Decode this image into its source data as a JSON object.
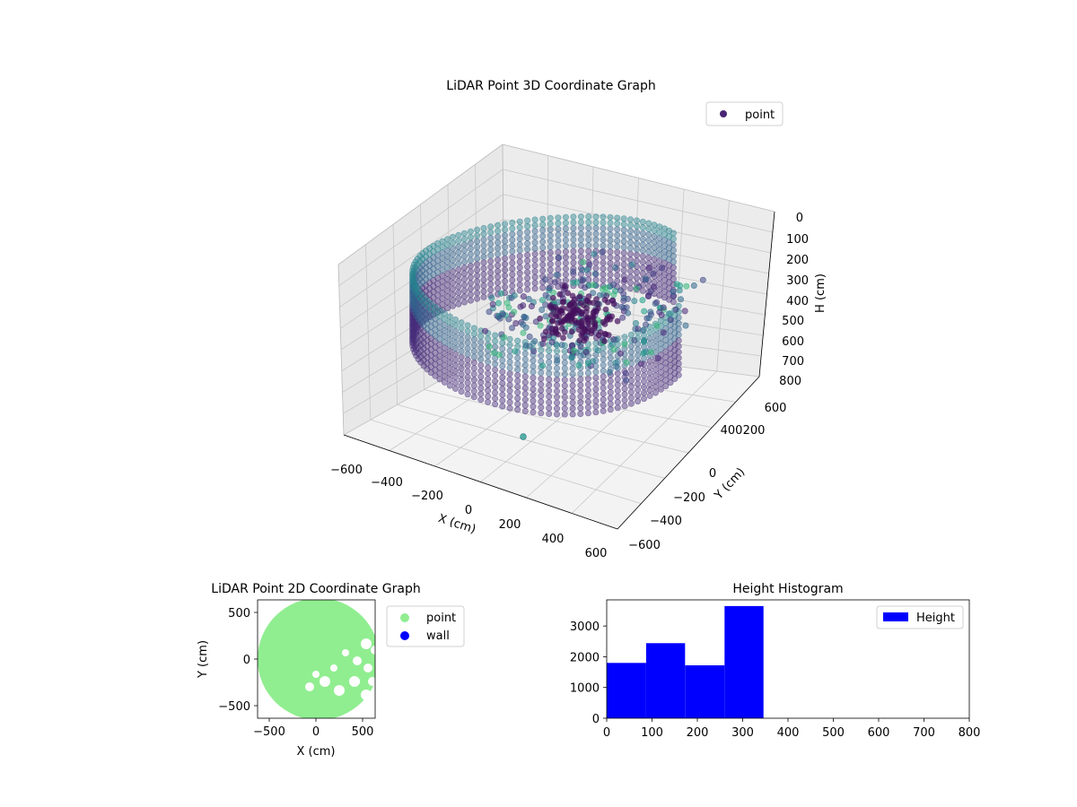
{
  "chart_data": [
    {
      "type": "scatter",
      "projection": "3d",
      "title": "LiDAR Point 3D Coordinate Graph",
      "xlabel": "X (cm)",
      "ylabel": "Y (cm)",
      "zlabel": "H (cm)",
      "xticks": [
        "−600",
        "−400",
        "−200",
        "0",
        "200",
        "400",
        "600"
      ],
      "yticks": [
        "−600",
        "−400",
        "−200",
        "0",
        "200",
        "400",
        "600"
      ],
      "zticks": [
        "0",
        "100",
        "200",
        "300",
        "400",
        "500",
        "600",
        "700",
        "800"
      ],
      "xlim": [
        -600,
        600
      ],
      "ylim": [
        -600,
        600
      ],
      "zlim": [
        0,
        800
      ],
      "z_inverted": true,
      "legend": {
        "entries": [
          {
            "label": "point",
            "color": "#482575"
          }
        ],
        "placement": "upper-right"
      },
      "colormap": "viridis",
      "grid": true,
      "series": [
        {
          "name": "point",
          "description_points": [
            {
              "x": 0,
              "y": -600,
              "h": 50
            }
          ]
        }
      ]
    },
    {
      "type": "scatter",
      "title": "LiDAR Point 2D Coordinate Graph",
      "xlabel": "X (cm)",
      "ylabel": "Y (cm)",
      "xticks": [
        "−500",
        "0",
        "500"
      ],
      "yticks": [
        "500",
        "0",
        "−500"
      ],
      "xlim": [
        -620,
        620
      ],
      "ylim": [
        -620,
        620
      ],
      "legend": {
        "entries": [
          {
            "label": "point",
            "color": "#90ee90"
          },
          {
            "label": "wall",
            "color": "#0000ff"
          }
        ],
        "placement": "outside-right"
      }
    },
    {
      "type": "bar",
      "title": "Height Histogram",
      "xticks": [
        "0",
        "100",
        "200",
        "300",
        "400",
        "500",
        "600",
        "700",
        "800"
      ],
      "yticks": [
        "0",
        "1000",
        "2000",
        "3000"
      ],
      "xlim": [
        0,
        800
      ],
      "ylim": [
        0,
        3850
      ],
      "bins": [
        {
          "from": 0,
          "to": 87,
          "count": 1800
        },
        {
          "from": 87,
          "to": 173,
          "count": 2440
        },
        {
          "from": 173,
          "to": 260,
          "count": 1720
        },
        {
          "from": 260,
          "to": 346,
          "count": 3650
        }
      ],
      "color": "#0000ff",
      "legend": {
        "entries": [
          {
            "label": "Height",
            "color": "#0000ff"
          }
        ],
        "placement": "upper-right"
      }
    }
  ]
}
